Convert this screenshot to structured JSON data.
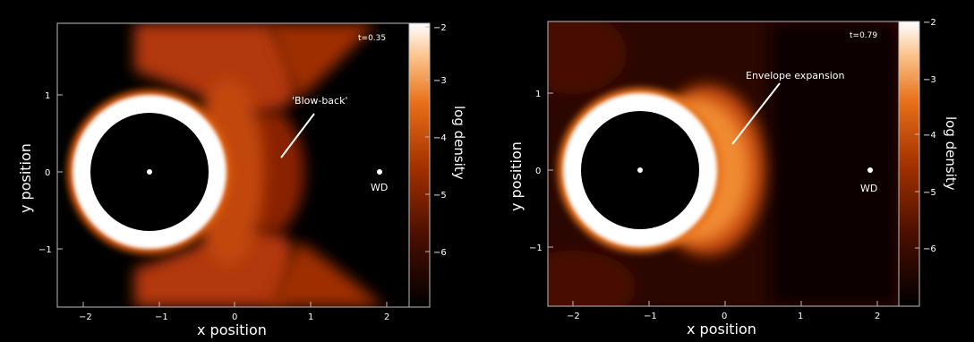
{
  "panels": [
    {
      "time_label": "t=0.35",
      "annotation": "'Blow-back'",
      "marker_label": "WD",
      "x_label": "x position",
      "y_label": "y position",
      "colorbar_label": "log density",
      "x_ticks": [
        "−2",
        "−1",
        "0",
        "1",
        "2"
      ],
      "y_ticks": [
        "1",
        "0",
        "−1"
      ],
      "colorbar_ticks": [
        "−2",
        "−3",
        "−4",
        "−5",
        "−6"
      ]
    },
    {
      "time_label": "t=0.79",
      "annotation": "Envelope expansion",
      "marker_label": "WD",
      "x_label": "x position",
      "y_label": "y position",
      "colorbar_label": "log density",
      "x_ticks": [
        "−2",
        "−1",
        "0",
        "1",
        "2"
      ],
      "y_ticks": [
        "1",
        "0",
        "−1"
      ],
      "colorbar_ticks": [
        "−2",
        "−3",
        "−4",
        "−5",
        "−6"
      ]
    }
  ],
  "colormap": [
    "#000000",
    "#3a0a00",
    "#7a1e00",
    "#b33a00",
    "#e06010",
    "#f5a050",
    "#ffe0c0",
    "#ffffff"
  ]
}
